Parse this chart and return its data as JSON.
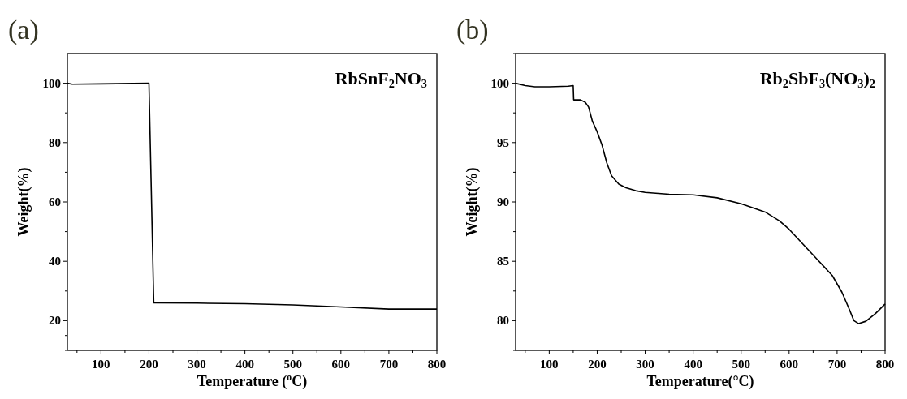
{
  "chart_data": [
    {
      "type": "line",
      "title": "(a)",
      "xlabel": "Temperature ($^{o}$C)",
      "ylabel": "Weight(%)",
      "annotations": [
        "RbSnF$_{2}$NO$_{3}$"
      ],
      "xlim": [
        30,
        800
      ],
      "ylim": [
        10,
        110
      ],
      "xticks": [
        {
          "value": 50,
          "label": null
        },
        100,
        {
          "value": 150,
          "label": null
        },
        200,
        {
          "value": 250,
          "label": null
        },
        300,
        {
          "value": 350,
          "label": null
        },
        400,
        {
          "value": 450,
          "label": null
        },
        500,
        {
          "value": 550,
          "label": null
        },
        600,
        {
          "value": 650,
          "label": null
        },
        700,
        {
          "value": 750,
          "label": null
        },
        800
      ],
      "yticks": [
        {
          "value": 10,
          "label": null
        },
        {
          "value": 15,
          "label": null
        },
        20,
        {
          "value": 30,
          "label": null
        },
        40,
        {
          "value": 50,
          "label": null
        },
        60,
        {
          "value": 70,
          "label": null
        },
        80,
        {
          "value": 90,
          "label": null
        },
        100
      ],
      "grid": false,
      "series": [
        {
          "color": "#000000",
          "x": [
            30,
            40,
            100,
            200,
            210,
            300,
            400,
            500,
            600,
            700,
            800
          ],
          "values": [
            100,
            99.7,
            99.8,
            100,
            26,
            25.9,
            25.7,
            25.3,
            24.6,
            23.9,
            23.9
          ]
        }
      ]
    },
    {
      "type": "line",
      "title": "(b)",
      "xlabel": "Temperature(°C)",
      "ylabel": "Weight(%)",
      "annotations": [
        "Rb$_{2}$SbF$_{3}$(NO$_{3}$)$_{2}$"
      ],
      "xlim": [
        30,
        800
      ],
      "ylim": [
        77.5,
        102.5
      ],
      "xticks": [
        {
          "value": 50,
          "label": null
        },
        100,
        {
          "value": 150,
          "label": null
        },
        200,
        {
          "value": 250,
          "label": null
        },
        300,
        {
          "value": 350,
          "label": null
        },
        400,
        {
          "value": 450,
          "label": null
        },
        500,
        {
          "value": 550,
          "label": null
        },
        600,
        {
          "value": 650,
          "label": null
        },
        700,
        {
          "value": 750,
          "label": null
        },
        800
      ],
      "yticks": [
        {
          "value": 77.5,
          "label": null
        },
        80,
        {
          "value": 82.5,
          "label": null
        },
        85,
        {
          "value": 87.5,
          "label": null
        },
        90,
        {
          "value": 92.5,
          "label": null
        },
        95,
        {
          "value": 97.5,
          "label": null
        },
        100,
        {
          "value": 102.5,
          "label": null
        }
      ],
      "grid": false,
      "series": [
        {
          "color": "#000000",
          "x": [
            30,
            50,
            70,
            100,
            140,
            150,
            151,
            165,
            175,
            182,
            190,
            200,
            210,
            220,
            230,
            245,
            260,
            280,
            300,
            350,
            400,
            450,
            500,
            550,
            580,
            600,
            630,
            660,
            690,
            710,
            725,
            735,
            745,
            760,
            780,
            800
          ],
          "values": [
            100,
            99.8,
            99.7,
            99.7,
            99.75,
            99.8,
            98.6,
            98.6,
            98.4,
            98.0,
            96.8,
            95.9,
            94.8,
            93.3,
            92.2,
            91.5,
            91.2,
            90.95,
            90.8,
            90.65,
            90.6,
            90.35,
            89.85,
            89.15,
            88.4,
            87.7,
            86.4,
            85.1,
            83.8,
            82.4,
            81.0,
            80.0,
            79.75,
            79.95,
            80.6,
            81.4
          ]
        }
      ]
    }
  ]
}
